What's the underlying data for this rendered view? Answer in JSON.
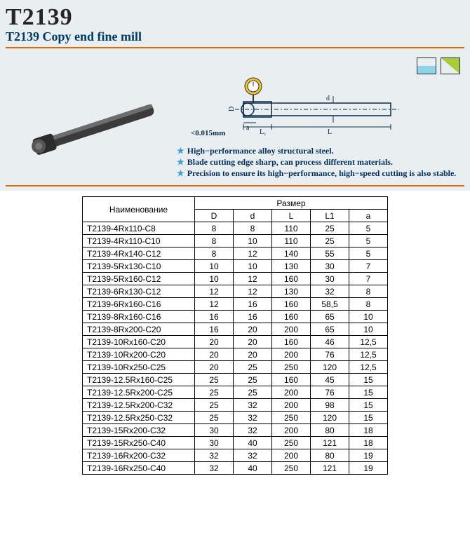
{
  "header": {
    "code": "T2139",
    "title": "T2139  Copy end fine mill",
    "tolerance": "<0.015mm"
  },
  "colors": {
    "header_bg": "#e9eef1",
    "orange_rule": "#e36a00",
    "feature_text": "#023061",
    "star": "#3fa0d0"
  },
  "schematic": {
    "labels": {
      "D_cap": "D",
      "d_low": "d",
      "a": "a",
      "L1": "L₁",
      "L": "L"
    }
  },
  "features": [
    "High−performance alloy structural steel.",
    "Blade cutting edge sharp, can process different materials.",
    "Precision to ensure its high−performance, high−speed cutting is also stable."
  ],
  "table": {
    "name_header": "Наименование",
    "size_header": "Размер",
    "columns": [
      "D",
      "d",
      "L",
      "L1",
      "a"
    ],
    "rows": [
      {
        "name": "T2139-4Rx110-C8",
        "vals": [
          "8",
          "8",
          "110",
          "25",
          "5"
        ]
      },
      {
        "name": "T2139-4Rx110-C10",
        "vals": [
          "8",
          "10",
          "110",
          "25",
          "5"
        ]
      },
      {
        "name": "T2139-4Rx140-C12",
        "vals": [
          "8",
          "12",
          "140",
          "55",
          "5"
        ]
      },
      {
        "name": "T2139-5Rx130-C10",
        "vals": [
          "10",
          "10",
          "130",
          "30",
          "7"
        ]
      },
      {
        "name": "T2139-5Rx160-C12",
        "vals": [
          "10",
          "12",
          "160",
          "30",
          "7"
        ]
      },
      {
        "name": "T2139-6Rx130-C12",
        "vals": [
          "12",
          "12",
          "130",
          "32",
          "8"
        ]
      },
      {
        "name": "T2139-6Rx160-C16",
        "vals": [
          "12",
          "16",
          "160",
          "58,5",
          "8"
        ]
      },
      {
        "name": "T2139-8Rx160-C16",
        "vals": [
          "16",
          "16",
          "160",
          "65",
          "10"
        ]
      },
      {
        "name": "T2139-8Rx200-C20",
        "vals": [
          "16",
          "20",
          "200",
          "65",
          "10"
        ]
      },
      {
        "name": "T2139-10Rx160-C20",
        "vals": [
          "20",
          "20",
          "160",
          "46",
          "12,5"
        ]
      },
      {
        "name": "T2139-10Rx200-C20",
        "vals": [
          "20",
          "20",
          "200",
          "76",
          "12,5"
        ]
      },
      {
        "name": "T2139-10Rx250-C25",
        "vals": [
          "20",
          "25",
          "250",
          "120",
          "12,5"
        ]
      },
      {
        "name": "T2139-12.5Rx160-C25",
        "vals": [
          "25",
          "25",
          "160",
          "45",
          "15"
        ]
      },
      {
        "name": "T2139-12.5Rx200-C25",
        "vals": [
          "25",
          "25",
          "200",
          "76",
          "15"
        ]
      },
      {
        "name": "T2139-12.5Rx200-C32",
        "vals": [
          "25",
          "32",
          "200",
          "98",
          "15"
        ]
      },
      {
        "name": "T2139-12.5Rx250-C32",
        "vals": [
          "25",
          "32",
          "250",
          "120",
          "15"
        ]
      },
      {
        "name": "T2139-15Rx200-C32",
        "vals": [
          "30",
          "32",
          "200",
          "80",
          "18"
        ]
      },
      {
        "name": "T2139-15Rx250-C40",
        "vals": [
          "30",
          "40",
          "250",
          "121",
          "18"
        ]
      },
      {
        "name": "T2139-16Rx200-C32",
        "vals": [
          "32",
          "32",
          "200",
          "80",
          "19"
        ]
      },
      {
        "name": "T2139-16Rx250-C40",
        "vals": [
          "32",
          "40",
          "250",
          "121",
          "19"
        ]
      }
    ]
  }
}
